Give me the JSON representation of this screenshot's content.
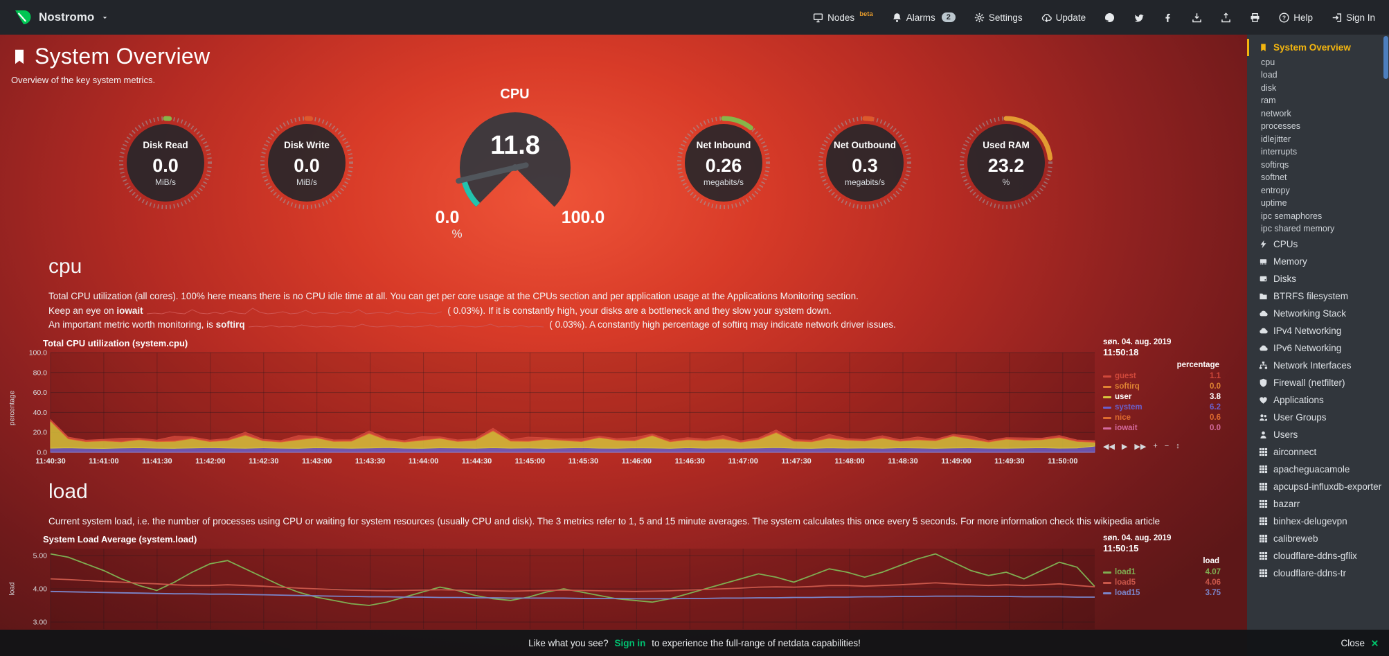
{
  "topbar": {
    "brand": "Nostromo",
    "menu": [
      {
        "id": "nodes",
        "label": "Nodes",
        "icon": "nodes",
        "sup": "beta"
      },
      {
        "id": "alarms",
        "label": "Alarms",
        "icon": "bell",
        "badge": "2"
      },
      {
        "id": "settings",
        "label": "Settings",
        "icon": "gear"
      },
      {
        "id": "update",
        "label": "Update",
        "icon": "update"
      },
      {
        "id": "github",
        "icon": "github"
      },
      {
        "id": "twitter",
        "icon": "twitter"
      },
      {
        "id": "facebook",
        "icon": "facebook"
      },
      {
        "id": "export",
        "icon": "download"
      },
      {
        "id": "import",
        "icon": "upload"
      },
      {
        "id": "print",
        "icon": "print"
      },
      {
        "id": "help",
        "label": "Help",
        "icon": "help"
      },
      {
        "id": "signin",
        "label": "Sign In",
        "icon": "signin"
      }
    ]
  },
  "page": {
    "title": "System Overview",
    "subtitle": "Overview of the key system metrics."
  },
  "gauges": [
    {
      "type": "ring",
      "title": "Disk Read",
      "value": "0.0",
      "unit": "MiB/s",
      "accent": "#86b649",
      "arc_deg": 5
    },
    {
      "type": "ring",
      "title": "Disk Write",
      "value": "0.0",
      "unit": "MiB/s",
      "accent": "#dd5a2c",
      "arc_deg": 5
    },
    {
      "type": "gauge",
      "title": "CPU",
      "value": "11.8",
      "min": "0.0",
      "max": "100.0",
      "unit": "%",
      "accent": "#23c3ae"
    },
    {
      "type": "ring",
      "title": "Net Inbound",
      "value": "0.26",
      "unit": "megabits/s",
      "accent": "#86b649",
      "arc_deg": 38
    },
    {
      "type": "ring",
      "title": "Net Outbound",
      "value": "0.3",
      "unit": "megabits/s",
      "accent": "#dd5a2c",
      "arc_deg": 9
    },
    {
      "type": "ring",
      "title": "Used RAM",
      "value": "23.2",
      "unit": "%",
      "accent": "#e39b32",
      "arc_deg": 84
    }
  ],
  "cpu_section": {
    "heading": "cpu",
    "line1": "Total CPU utilization (all cores). 100% here means there is no CPU idle time at all. You can get per core usage at the CPUs section and per application usage at the Applications Monitoring section.",
    "line2_pre": "Keep an eye on ",
    "line2_term": "iowait",
    "line2_open": " ( ",
    "line2_value": "0.03",
    "line2_post": "%). If it is constantly high, your disks are a bottleneck and they slow your system down.",
    "line3_pre": "An important metric worth monitoring, is ",
    "line3_term": "softirq",
    "line3_open": " ( ",
    "line3_value": "0.03",
    "line3_post": "%). A constantly high percentage of softirq may indicate network driver issues."
  },
  "load_section": {
    "heading": "load",
    "line1": "Current system load, i.e. the number of processes using CPU or waiting for system resources (usually CPU and disk). The 3 metrics refer to 1, 5 and 15 minute averages. The system calculates this once every 5 seconds. For more information check this wikipedia article"
  },
  "sparklines": {
    "color": "#cf5552",
    "iowait": [
      0,
      0.1,
      0,
      0.3,
      0.1,
      0,
      0.6,
      0.1,
      0,
      0.2,
      0,
      0.4,
      0.1,
      0,
      0.8,
      0.2,
      0,
      0.1,
      0.3,
      0,
      0.1,
      0.5,
      0,
      0.2,
      0.1,
      0,
      0.3,
      0.1,
      0.6,
      0,
      0.1,
      0.2,
      0,
      0.4,
      0.1,
      0,
      0.2,
      0.1,
      0,
      0.3
    ],
    "softirq": [
      0.2,
      0.3,
      0.2,
      0.4,
      0.2,
      0.3,
      0.2,
      0.5,
      0.3,
      0.2,
      0.3,
      0.2,
      0.4,
      0.3,
      0.2,
      0.6,
      0.3,
      0.2,
      0.3,
      0.4,
      0.2,
      0.3,
      0.2,
      0.3,
      0.5,
      0.2,
      0.3,
      0.2,
      0.4,
      0.3,
      0.2,
      0.3,
      0.6,
      0.2,
      0.3,
      0.2,
      0.4,
      0.2,
      0.3,
      0.2
    ]
  },
  "chart_toolbar": [
    {
      "name": "pan-backward",
      "glyph": "◀◀"
    },
    {
      "name": "play",
      "glyph": "▶"
    },
    {
      "name": "pan-forward",
      "glyph": "▶▶"
    },
    {
      "name": "zoom-in",
      "glyph": "+"
    },
    {
      "name": "zoom-out",
      "glyph": "−"
    },
    {
      "name": "resize",
      "glyph": "↕"
    }
  ],
  "chart_data": [
    {
      "type": "area",
      "title": "Total CPU utilization (system.cpu)",
      "ylabel": "percentage",
      "date": "søn. 04. aug. 2019",
      "time": "11:50:18",
      "unit_label": "percentage",
      "ylim": [
        0,
        100
      ],
      "yticks": [
        "100.0",
        "80.0",
        "60.0",
        "40.0",
        "20.0",
        "0.0"
      ],
      "xticks": [
        "11:40:30",
        "11:41:00",
        "11:41:30",
        "11:42:00",
        "11:42:30",
        "11:43:00",
        "11:43:30",
        "11:44:00",
        "11:44:30",
        "11:45:00",
        "11:45:30",
        "11:46:00",
        "11:46:30",
        "11:47:00",
        "11:47:30",
        "11:48:00",
        "11:48:30",
        "11:49:00",
        "11:49:30",
        "11:50:00"
      ],
      "stack_order": [
        "system",
        "user",
        "nice",
        "guest"
      ],
      "highlight": "user",
      "series": [
        {
          "name": "guest",
          "value": "1.1",
          "color": "#d0483a",
          "values": [
            1,
            1.2,
            1,
            1,
            3,
            1,
            1.1,
            4.5,
            1,
            1,
            1.2,
            2.5,
            1,
            1,
            3.8,
            1,
            1.1,
            1,
            2,
            1,
            1,
            3.2,
            1,
            1.1,
            1,
            2,
            1,
            3.8,
            1,
            1,
            2.4,
            1,
            1,
            2.8,
            1,
            1.1,
            1.5,
            1,
            3,
            1,
            1,
            2,
            1,
            1.1,
            3.4,
            1,
            1,
            2,
            1,
            2.4,
            1,
            1,
            2.8,
            1,
            1,
            2,
            1,
            1.5,
            1,
            1.1
          ]
        },
        {
          "name": "softirq",
          "value": "0.0",
          "color": "#df8433",
          "values": [
            0,
            0,
            0,
            0,
            0,
            0,
            0,
            0,
            0,
            0,
            0,
            0,
            0,
            0,
            0,
            0,
            0,
            0,
            0,
            0,
            0,
            0,
            0,
            0,
            0,
            0,
            0,
            0,
            0,
            0,
            0,
            0,
            0,
            0,
            0,
            0,
            0,
            0,
            0,
            0,
            0,
            0,
            0,
            0,
            0,
            0,
            0,
            0,
            0,
            0,
            0,
            0,
            0,
            0,
            0,
            0,
            0,
            0,
            0,
            0
          ]
        },
        {
          "name": "user",
          "value": "3.8",
          "color": "#d8c63c",
          "values": [
            27,
            9,
            6.5,
            7.5,
            6,
            8,
            6.5,
            7,
            9.5,
            6,
            7.5,
            13,
            7,
            6,
            8.5,
            10,
            6.5,
            7,
            14.5,
            7.5,
            6,
            8,
            9.5,
            6.5,
            8,
            17,
            7,
            6.5,
            9,
            7.5,
            6,
            10.5,
            8,
            7,
            12.5,
            6.5,
            8,
            7.5,
            9,
            6,
            8.5,
            15,
            7,
            6.5,
            9.5,
            8,
            7,
            10,
            6.5,
            8,
            7.5,
            12,
            8.5,
            6,
            9,
            7.5,
            8,
            10.5,
            6.5,
            3.8
          ]
        },
        {
          "name": "system",
          "value": "6.2",
          "color": "#6a60cc",
          "values": [
            4.2,
            4.5,
            4.1,
            3.9,
            4.4,
            4.6,
            4.2,
            4.0,
            4.3,
            4.7,
            4.4,
            4.1,
            4.5,
            4.2,
            4.0,
            4.6,
            4.3,
            4.1,
            4.4,
            4.8,
            4.2,
            4.0,
            4.5,
            4.3,
            4.1,
            4.6,
            4.2,
            4.4,
            4.0,
            4.3,
            4.7,
            4.2,
            4.1,
            4.5,
            4.3,
            4.0,
            4.6,
            4.2,
            4.4,
            4.1,
            4.3,
            4.8,
            4.2,
            4.0,
            4.5,
            4.2,
            4.3,
            4.1,
            4.6,
            4.4,
            4.0,
            4.3,
            4.5,
            4.2,
            4.1,
            4.4,
            4.6,
            4.2,
            4.3,
            6.2
          ]
        },
        {
          "name": "nice",
          "value": "0.6",
          "color": "#df6b2f",
          "values": [
            0.6,
            0.6,
            0.6,
            0.6,
            0.6,
            0.6,
            0.6,
            0.6,
            0.6,
            0.6,
            0.6,
            0.6,
            0.6,
            0.6,
            0.6,
            0.6,
            0.6,
            0.6,
            0.6,
            0.6,
            0.6,
            0.6,
            0.6,
            0.6,
            0.6,
            0.6,
            0.6,
            0.6,
            0.6,
            0.6,
            0.6,
            0.6,
            0.6,
            0.6,
            0.6,
            0.6,
            0.6,
            0.6,
            0.6,
            0.6,
            0.6,
            0.6,
            0.6,
            0.6,
            0.6,
            0.6,
            0.6,
            0.6,
            0.6,
            0.6,
            0.6,
            0.6,
            0.6,
            0.6,
            0.6,
            0.6,
            0.6,
            0.6,
            0.6,
            0.6
          ]
        },
        {
          "name": "iowait",
          "value": "0.0",
          "color": "#d56a9e",
          "values": [
            0,
            0,
            0,
            0,
            0,
            0,
            0,
            0,
            0,
            0,
            0,
            0,
            0,
            0,
            0,
            0,
            0,
            0,
            0,
            0,
            0,
            0,
            0,
            0,
            0,
            0,
            0,
            0,
            0,
            0,
            0,
            0,
            0,
            0,
            0,
            0,
            0,
            0,
            0,
            0,
            0,
            0,
            0,
            0,
            0,
            0,
            0,
            0,
            0,
            0,
            0,
            0,
            0,
            0,
            0,
            0,
            0,
            0,
            0,
            0
          ]
        }
      ]
    },
    {
      "type": "line",
      "title": "System Load Average (system.load)",
      "ylabel": "load",
      "date": "søn. 04. aug. 2019",
      "time": "11:50:15",
      "unit_label": "load",
      "ylim": [
        2.9,
        5.3
      ],
      "yticks": [
        "5.00",
        "4.00",
        "3.00"
      ],
      "xticks": [],
      "series": [
        {
          "name": "load1",
          "value": "4.07",
          "color": "#7fae52",
          "values": [
            5.05,
            4.95,
            4.75,
            4.55,
            4.3,
            4.1,
            3.95,
            4.2,
            4.5,
            4.75,
            4.85,
            4.6,
            4.35,
            4.1,
            3.9,
            3.75,
            3.65,
            3.55,
            3.5,
            3.6,
            3.75,
            3.9,
            4.05,
            3.95,
            3.8,
            3.7,
            3.65,
            3.75,
            3.9,
            4.0,
            3.9,
            3.8,
            3.7,
            3.65,
            3.6,
            3.7,
            3.85,
            4.0,
            4.15,
            4.3,
            4.45,
            4.35,
            4.2,
            4.4,
            4.6,
            4.5,
            4.35,
            4.5,
            4.7,
            4.9,
            5.05,
            4.8,
            4.55,
            4.4,
            4.5,
            4.3,
            4.55,
            4.8,
            4.65,
            4.07
          ]
        },
        {
          "name": "load5",
          "value": "4.06",
          "color": "#c9574a",
          "values": [
            4.3,
            4.28,
            4.25,
            4.22,
            4.2,
            4.17,
            4.15,
            4.12,
            4.1,
            4.1,
            4.12,
            4.1,
            4.08,
            4.05,
            4.02,
            4.0,
            3.98,
            3.96,
            3.95,
            3.94,
            3.95,
            3.96,
            3.97,
            3.96,
            3.95,
            3.94,
            3.93,
            3.94,
            3.95,
            3.96,
            3.95,
            3.94,
            3.93,
            3.92,
            3.93,
            3.94,
            3.96,
            3.98,
            4.0,
            4.02,
            4.05,
            4.06,
            4.05,
            4.07,
            4.1,
            4.1,
            4.08,
            4.1,
            4.12,
            4.15,
            4.18,
            4.15,
            4.12,
            4.1,
            4.12,
            4.1,
            4.12,
            4.15,
            4.1,
            4.06
          ]
        },
        {
          "name": "load15",
          "value": "3.75",
          "color": "#7b85c9",
          "values": [
            3.92,
            3.91,
            3.9,
            3.89,
            3.88,
            3.87,
            3.86,
            3.85,
            3.85,
            3.84,
            3.84,
            3.83,
            3.82,
            3.81,
            3.8,
            3.79,
            3.78,
            3.77,
            3.76,
            3.76,
            3.75,
            3.75,
            3.74,
            3.74,
            3.73,
            3.73,
            3.72,
            3.72,
            3.72,
            3.72,
            3.71,
            3.71,
            3.71,
            3.7,
            3.7,
            3.7,
            3.71,
            3.71,
            3.72,
            3.72,
            3.73,
            3.73,
            3.74,
            3.74,
            3.75,
            3.75,
            3.76,
            3.76,
            3.77,
            3.77,
            3.78,
            3.78,
            3.78,
            3.77,
            3.77,
            3.76,
            3.76,
            3.76,
            3.75,
            3.75
          ]
        }
      ]
    }
  ],
  "sidebar": {
    "items": [
      {
        "label": "System Overview",
        "icon": "bookmark",
        "type": "active"
      },
      {
        "label": "cpu",
        "type": "sub"
      },
      {
        "label": "load",
        "type": "sub"
      },
      {
        "label": "disk",
        "type": "sub"
      },
      {
        "label": "ram",
        "type": "sub"
      },
      {
        "label": "network",
        "type": "sub"
      },
      {
        "label": "processes",
        "type": "sub"
      },
      {
        "label": "idlejitter",
        "type": "sub"
      },
      {
        "label": "interrupts",
        "type": "sub"
      },
      {
        "label": "softirqs",
        "type": "sub"
      },
      {
        "label": "softnet",
        "type": "sub"
      },
      {
        "label": "entropy",
        "type": "sub"
      },
      {
        "label": "uptime",
        "type": "sub"
      },
      {
        "label": "ipc semaphores",
        "type": "sub"
      },
      {
        "label": "ipc shared memory",
        "type": "sub"
      },
      {
        "label": "CPUs",
        "icon": "bolt",
        "type": "main"
      },
      {
        "label": "Memory",
        "icon": "memory",
        "type": "main"
      },
      {
        "label": "Disks",
        "icon": "disk",
        "type": "main"
      },
      {
        "label": "BTRFS filesystem",
        "icon": "folder",
        "type": "main"
      },
      {
        "label": "Networking Stack",
        "icon": "cloud",
        "type": "main"
      },
      {
        "label": "IPv4 Networking",
        "icon": "cloud",
        "type": "main"
      },
      {
        "label": "IPv6 Networking",
        "icon": "cloud",
        "type": "main"
      },
      {
        "label": "Network Interfaces",
        "icon": "network",
        "type": "main"
      },
      {
        "label": "Firewall (netfilter)",
        "icon": "shield",
        "type": "main"
      },
      {
        "label": "Applications",
        "icon": "heart",
        "type": "main"
      },
      {
        "label": "User Groups",
        "icon": "users",
        "type": "main"
      },
      {
        "label": "Users",
        "icon": "user",
        "type": "main"
      },
      {
        "label": "airconnect",
        "icon": "grid",
        "type": "main"
      },
      {
        "label": "apacheguacamole",
        "icon": "grid",
        "type": "main"
      },
      {
        "label": "apcupsd-influxdb-exporter",
        "icon": "grid",
        "type": "main"
      },
      {
        "label": "bazarr",
        "icon": "grid",
        "type": "main"
      },
      {
        "label": "binhex-delugevpn",
        "icon": "grid",
        "type": "main"
      },
      {
        "label": "calibreweb",
        "icon": "grid",
        "type": "main"
      },
      {
        "label": "cloudflare-ddns-gflix",
        "icon": "grid",
        "type": "main"
      },
      {
        "label": "cloudflare-ddns-tr",
        "icon": "grid",
        "type": "main"
      }
    ]
  },
  "footer": {
    "message_pre": "Like what you see? ",
    "signin": "Sign in",
    "message_post": " to experience the full-range of netdata capabilities!",
    "close": "Close"
  }
}
